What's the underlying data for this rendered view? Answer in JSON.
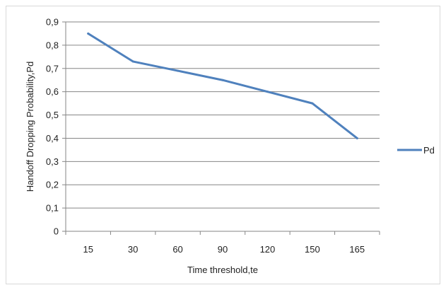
{
  "chart_data": {
    "type": "line",
    "categories": [
      "15",
      "30",
      "60",
      "90",
      "120",
      "150",
      "165"
    ],
    "series": [
      {
        "name": "Pd",
        "values": [
          0.85,
          0.73,
          0.69,
          0.65,
          0.6,
          0.55,
          0.4
        ],
        "color": "#4f81bd"
      }
    ],
    "yticks": [
      "0",
      "0,1",
      "0,2",
      "0,3",
      "0,4",
      "0,5",
      "0,6",
      "0,7",
      "0,8",
      "0,9"
    ],
    "ylim": [
      0,
      0.9
    ],
    "xlabel": "Time threshold,te",
    "ylabel": "Handoff Dropping Probability,Pd",
    "title": "",
    "grid": "horizontal",
    "legend": {
      "position": "right",
      "label": "Pd"
    }
  }
}
